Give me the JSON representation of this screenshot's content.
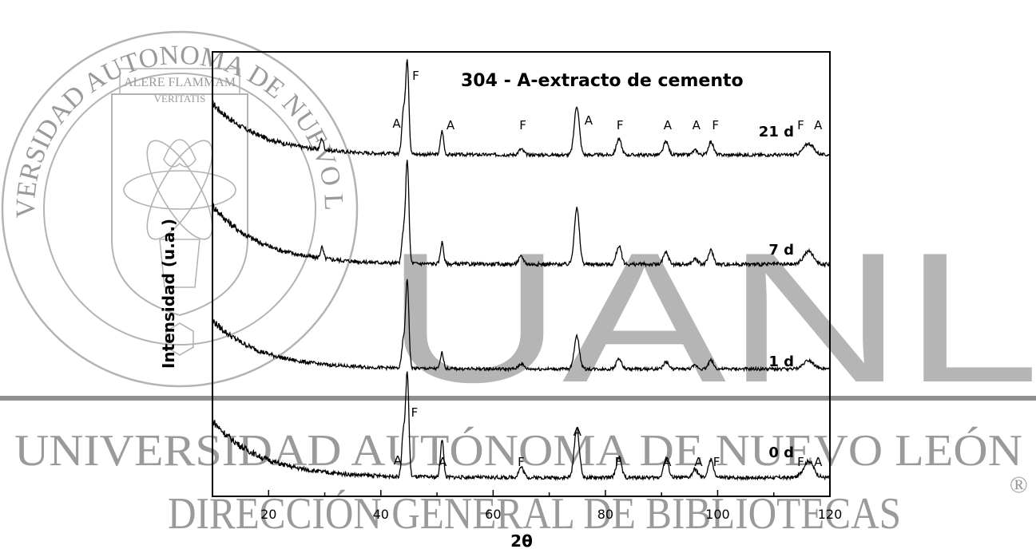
{
  "watermark": {
    "seal_text": "UNIVERSIDAD AUTONOMA DE NUEVO LEON",
    "motto_line1": "ALERE FLAMMAM",
    "motto_line2": "VERITATIS",
    "monogram": "UANL",
    "band_text": "UNIVERSIDAD AUTÓNOMA DE NUEVO LEÓN",
    "registered_mark": "®",
    "footer_text": "DIRECCIÓN GENERAL DE BIBLIOTECAS"
  },
  "chart_data": {
    "type": "line",
    "title": "304 - A-extracto de cemento",
    "xlabel": "2θ",
    "ylabel": "Intensidad (u.a.)",
    "xlim": [
      10,
      120
    ],
    "xticks": [
      20,
      40,
      60,
      80,
      100,
      120
    ],
    "yaxis_ticks": "none",
    "grid": false,
    "legend": "none (series labelled on the right of each trace)",
    "series": [
      {
        "name": "21 d",
        "peaks": [
          {
            "x": 29.5,
            "height": 0.12
          },
          {
            "x": 44.0,
            "height": 0.45
          },
          {
            "x": 44.7,
            "height": 1.0
          },
          {
            "x": 50.9,
            "height": 0.25
          },
          {
            "x": 65.0,
            "height": 0.06
          },
          {
            "x": 74.9,
            "height": 0.52
          },
          {
            "x": 82.4,
            "height": 0.17
          },
          {
            "x": 90.8,
            "height": 0.14
          },
          {
            "x": 96.0,
            "height": 0.05
          },
          {
            "x": 98.8,
            "height": 0.14
          },
          {
            "x": 116.2,
            "height": 0.12
          }
        ]
      },
      {
        "name": "7 d",
        "peaks": [
          {
            "x": 29.5,
            "height": 0.1
          },
          {
            "x": 44.0,
            "height": 0.28
          },
          {
            "x": 44.7,
            "height": 0.96
          },
          {
            "x": 50.9,
            "height": 0.2
          },
          {
            "x": 65.0,
            "height": 0.07
          },
          {
            "x": 74.9,
            "height": 0.52
          },
          {
            "x": 82.4,
            "height": 0.17
          },
          {
            "x": 90.8,
            "height": 0.11
          },
          {
            "x": 96.0,
            "height": 0.05
          },
          {
            "x": 98.8,
            "height": 0.13
          },
          {
            "x": 116.2,
            "height": 0.12
          }
        ]
      },
      {
        "name": "1 d",
        "peaks": [
          {
            "x": 44.0,
            "height": 0.3
          },
          {
            "x": 44.7,
            "height": 1.0
          },
          {
            "x": 50.9,
            "height": 0.18
          },
          {
            "x": 65.0,
            "height": 0.06
          },
          {
            "x": 74.9,
            "height": 0.38
          },
          {
            "x": 82.4,
            "height": 0.12
          },
          {
            "x": 90.8,
            "height": 0.08
          },
          {
            "x": 96.0,
            "height": 0.04
          },
          {
            "x": 98.8,
            "height": 0.1
          },
          {
            "x": 116.2,
            "height": 0.1
          }
        ]
      },
      {
        "name": "0 d",
        "peaks": [
          {
            "x": 44.0,
            "height": 0.42
          },
          {
            "x": 44.7,
            "height": 1.0
          },
          {
            "x": 50.9,
            "height": 0.37
          },
          {
            "x": 65.0,
            "height": 0.1
          },
          {
            "x": 74.9,
            "height": 0.48
          },
          {
            "x": 82.4,
            "height": 0.2
          },
          {
            "x": 90.8,
            "height": 0.18
          },
          {
            "x": 96.0,
            "height": 0.08
          },
          {
            "x": 98.8,
            "height": 0.17
          },
          {
            "x": 116.2,
            "height": 0.16
          }
        ]
      }
    ],
    "annotations": {
      "21 d": [
        {
          "text": "A",
          "x": 42.8
        },
        {
          "text": "F",
          "x": 46.2
        },
        {
          "text": "A",
          "x": 52.4
        },
        {
          "text": "F",
          "x": 65.3
        },
        {
          "text": "A",
          "x": 77.0
        },
        {
          "text": "F",
          "x": 82.6
        },
        {
          "text": "A",
          "x": 91.1
        },
        {
          "text": "A",
          "x": 96.2
        },
        {
          "text": "F",
          "x": 99.6
        },
        {
          "text": "F",
          "x": 114.8
        },
        {
          "text": "A",
          "x": 117.9
        }
      ],
      "0 d": [
        {
          "text": "A",
          "x": 43.0
        },
        {
          "text": "F",
          "x": 46.0
        },
        {
          "text": "A",
          "x": 51.0
        },
        {
          "text": "F",
          "x": 65.0
        },
        {
          "text": "A",
          "x": 75.0
        },
        {
          "text": "F",
          "x": 82.3
        },
        {
          "text": "A",
          "x": 91.0
        },
        {
          "text": "A",
          "x": 96.6
        },
        {
          "text": "F",
          "x": 99.8
        },
        {
          "text": "F",
          "x": 114.8
        },
        {
          "text": "A",
          "x": 117.9
        }
      ]
    }
  }
}
